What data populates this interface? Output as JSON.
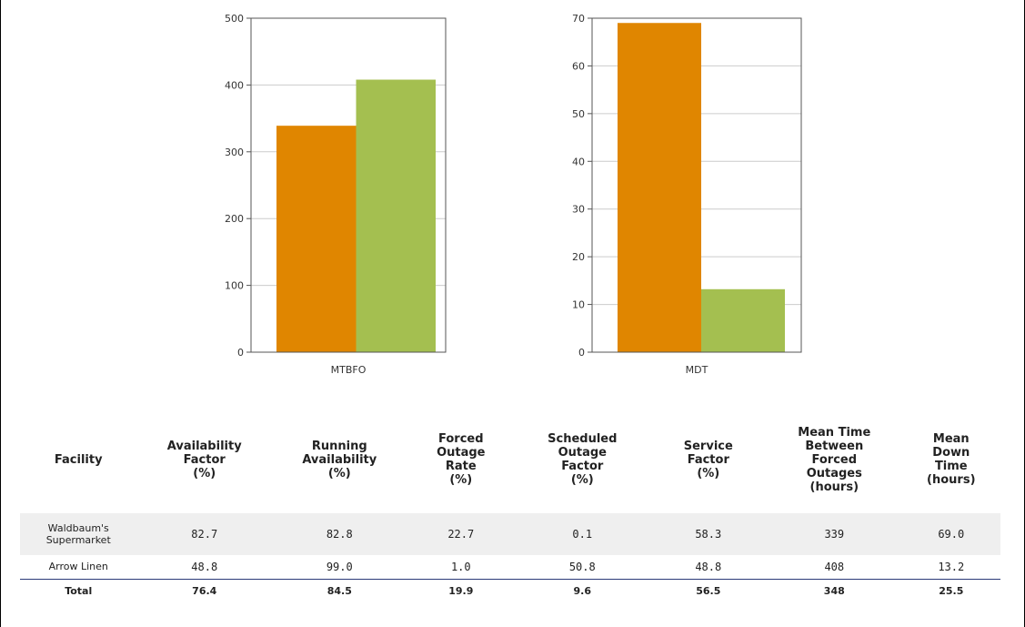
{
  "colors": {
    "series_a": "#E08600",
    "series_b": "#A4BF50",
    "grid": "#cccccc",
    "axis": "#555555",
    "rule": "#2b3a78"
  },
  "chart_data": [
    {
      "type": "bar",
      "categories": [
        "MTBFO"
      ],
      "series": [
        {
          "values": [
            339
          ]
        },
        {
          "values": [
            408
          ]
        }
      ],
      "ylim": [
        0,
        500
      ],
      "yticks": [
        0,
        100,
        200,
        300,
        400,
        500
      ],
      "grid": true
    },
    {
      "type": "bar",
      "categories": [
        "MDT"
      ],
      "series": [
        {
          "values": [
            69.0
          ]
        },
        {
          "values": [
            13.2
          ]
        }
      ],
      "ylim": [
        0,
        70
      ],
      "yticks": [
        0,
        10,
        20,
        30,
        40,
        50,
        60,
        70
      ],
      "grid": true
    }
  ],
  "table": {
    "headers": [
      "Facility",
      "Availability Factor (%)",
      "Running Availability (%)",
      "Forced Outage Rate (%)",
      "Scheduled Outage Factor (%)",
      "Service Factor (%)",
      "Mean Time Between Forced Outages (hours)",
      "Mean Down Time (hours)"
    ],
    "header_lines": [
      [
        "Facility"
      ],
      [
        "Availability",
        "Factor",
        "(%)"
      ],
      [
        "Running",
        "Availability",
        "(%)"
      ],
      [
        "Forced",
        "Outage",
        "Rate",
        "(%)"
      ],
      [
        "Scheduled",
        "Outage",
        "Factor",
        "(%)"
      ],
      [
        "Service",
        "Factor",
        "(%)"
      ],
      [
        "Mean Time",
        "Between",
        "Forced",
        "Outages",
        "(hours)"
      ],
      [
        "Mean",
        "Down",
        "Time",
        "(hours)"
      ]
    ],
    "rows": [
      {
        "facility_lines": [
          "Waldbaum's",
          "Supermarket"
        ],
        "facility": "Waldbaum's Supermarket",
        "values": [
          "82.7",
          "82.8",
          "22.7",
          "0.1",
          "58.3",
          "339",
          "69.0"
        ]
      },
      {
        "facility_lines": [
          "Arrow Linen"
        ],
        "facility": "Arrow Linen",
        "values": [
          "48.8",
          "99.0",
          "1.0",
          "50.8",
          "48.8",
          "408",
          "13.2"
        ]
      }
    ],
    "total": {
      "label": "Total",
      "values": [
        "76.4",
        "84.5",
        "19.9",
        "9.6",
        "56.5",
        "348",
        "25.5"
      ]
    }
  }
}
